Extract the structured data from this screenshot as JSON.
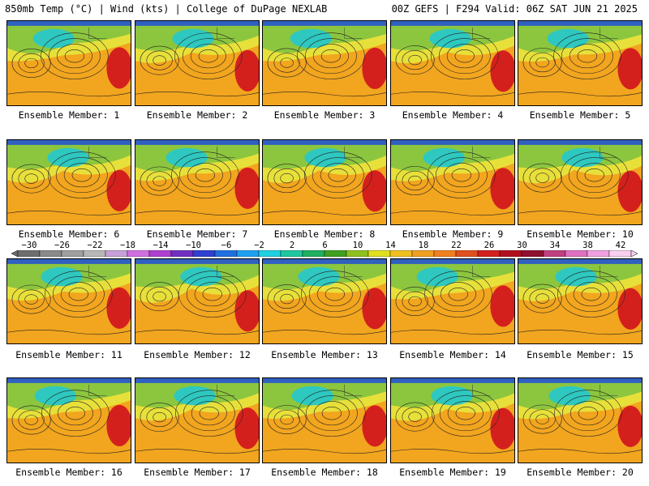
{
  "header": {
    "left": "850mb Temp (°C) | Wind (kts) | College of DuPage NEXLAB",
    "right": "00Z GEFS | F294 Valid: 06Z SAT JUN 21 2025"
  },
  "member_prefix": "Ensemble Member: ",
  "members": [
    "Ensemble Member: 1",
    "Ensemble Member: 2",
    "Ensemble Member: 3",
    "Ensemble Member: 4",
    "Ensemble Member: 5",
    "Ensemble Member: 6",
    "Ensemble Member: 7",
    "Ensemble Member: 8",
    "Ensemble Member: 9",
    "Ensemble Member: 10",
    "Ensemble Member: 11",
    "Ensemble Member: 12",
    "Ensemble Member: 13",
    "Ensemble Member: 14",
    "Ensemble Member: 15",
    "Ensemble Member: 16",
    "Ensemble Member: 17",
    "Ensemble Member: 18",
    "Ensemble Member: 19",
    "Ensemble Member: 20"
  ],
  "colorbar": {
    "ticks": [
      "−30",
      "−26",
      "−22",
      "−18",
      "−14",
      "−10",
      "−6",
      "−2",
      "2",
      "6",
      "10",
      "14",
      "18",
      "22",
      "26",
      "30",
      "34",
      "38",
      "42"
    ],
    "colors": [
      "#6e6e6e",
      "#8a8a8a",
      "#a0a0a0",
      "#b8b8b8",
      "#c8a0d8",
      "#d070e0",
      "#b040d0",
      "#7030c0",
      "#3040d0",
      "#2070e0",
      "#20a0f0",
      "#20d0e0",
      "#20c8a0",
      "#20b060",
      "#40a020",
      "#90c020",
      "#e0e020",
      "#f0c020",
      "#f0a020",
      "#f08020",
      "#e05020",
      "#d02020",
      "#b01020",
      "#901030",
      "#c04080",
      "#e070c0",
      "#f0a0e0",
      "#f8d0f0"
    ]
  },
  "map_colors": {
    "warm": "#f2a51e",
    "hot": "#d4201c",
    "cool": "#2ec8c0",
    "mild": "#8cc63e",
    "yellow": "#e8e03a"
  }
}
